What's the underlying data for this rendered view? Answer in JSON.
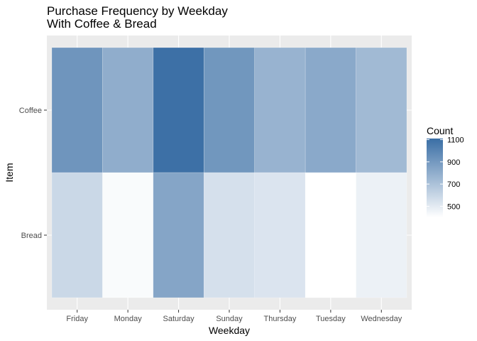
{
  "chart_data": {
    "type": "heatmap",
    "title": "Purchase Frequency by Weekday",
    "subtitle": "With Coffee & Bread",
    "xlabel": "Weekday",
    "ylabel": "Item",
    "x_categories": [
      "Friday",
      "Monday",
      "Saturday",
      "Sunday",
      "Thursday",
      "Tuesday",
      "Wednesday"
    ],
    "y_categories": [
      "Bread",
      "Coffee"
    ],
    "values": [
      {
        "x": "Friday",
        "y": "Coffee",
        "value": 920
      },
      {
        "x": "Monday",
        "y": "Coffee",
        "value": 800
      },
      {
        "x": "Saturday",
        "y": "Coffee",
        "value": 1100
      },
      {
        "x": "Sunday",
        "y": "Coffee",
        "value": 910
      },
      {
        "x": "Thursday",
        "y": "Coffee",
        "value": 770
      },
      {
        "x": "Tuesday",
        "y": "Coffee",
        "value": 820
      },
      {
        "x": "Wednesday",
        "y": "Coffee",
        "value": 740
      },
      {
        "x": "Friday",
        "y": "Bread",
        "value": 590
      },
      {
        "x": "Monday",
        "y": "Bread",
        "value": 420
      },
      {
        "x": "Saturday",
        "y": "Bread",
        "value": 840
      },
      {
        "x": "Sunday",
        "y": "Bread",
        "value": 550
      },
      {
        "x": "Thursday",
        "y": "Bread",
        "value": 530
      },
      {
        "x": "Tuesday",
        "y": "Bread",
        "value": 400
      },
      {
        "x": "Wednesday",
        "y": "Bread",
        "value": 470
      }
    ],
    "legend": {
      "title": "Count",
      "ticks": [
        500,
        700,
        900,
        1100
      ],
      "range": [
        400,
        1110
      ],
      "placement": "right"
    },
    "colors": {
      "low": "#ffffff",
      "high": "#3a6ea5",
      "panel": "#ebebeb",
      "grid": "#ffffff"
    },
    "grid": true
  }
}
